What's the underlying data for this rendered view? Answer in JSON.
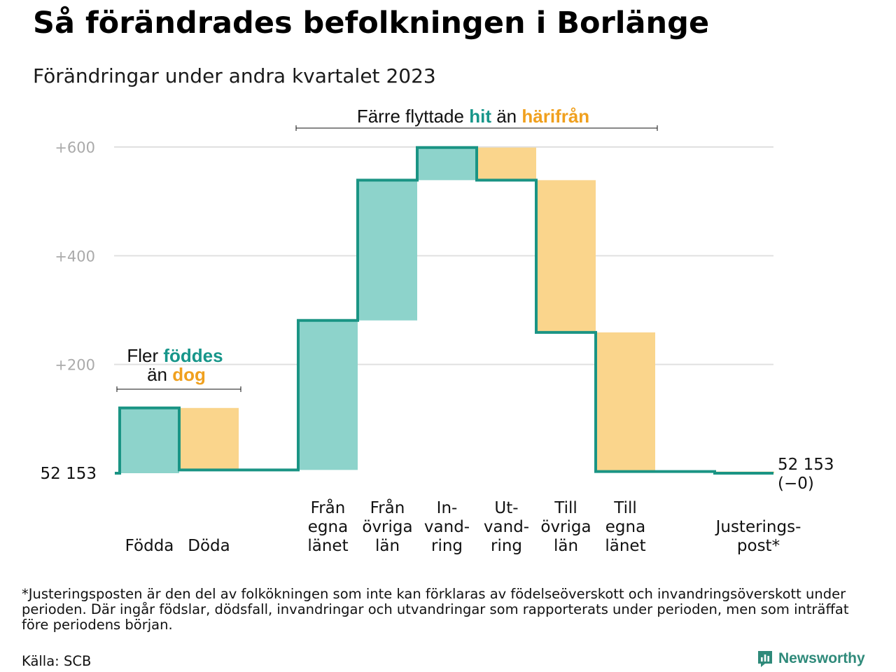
{
  "header": {
    "title": "Så förändrades befolkningen i Borlänge",
    "subtitle": "Förändringar under andra kvartalet 2023"
  },
  "colors": {
    "increase": "#8dd3cb",
    "decrease": "#fad58c",
    "line": "#1a9484",
    "grid": "#e0e0e0",
    "tick": "#aaaaaa",
    "teal_text": "#17968a",
    "orange_text": "#f0a01e"
  },
  "chart_data": {
    "type": "waterfall",
    "start_label": "52  153",
    "end_label": "52 153",
    "end_sublabel": "(−0)",
    "ylim": [
      0,
      600
    ],
    "y_ticks": [
      {
        "value": 200,
        "label": "+200"
      },
      {
        "value": 400,
        "label": "+400"
      },
      {
        "value": 600,
        "label": "+600"
      }
    ],
    "steps": [
      {
        "lines": [
          "Födda"
        ],
        "value": 120,
        "kind": "increase"
      },
      {
        "lines": [
          "Döda"
        ],
        "value": -114,
        "kind": "decrease"
      },
      {
        "lines": [
          "Från",
          "egna",
          "länet"
        ],
        "value": 275,
        "kind": "increase"
      },
      {
        "lines": [
          "Från",
          "övriga",
          "län"
        ],
        "value": 258,
        "kind": "increase"
      },
      {
        "lines": [
          "In-",
          "vand-",
          "ring"
        ],
        "value": 60,
        "kind": "increase"
      },
      {
        "lines": [
          "Ut-",
          "vand-",
          "ring"
        ],
        "value": -60,
        "kind": "decrease"
      },
      {
        "lines": [
          "Till",
          "övriga",
          "län"
        ],
        "value": -280,
        "kind": "decrease"
      },
      {
        "lines": [
          "Till",
          "egna",
          "länet"
        ],
        "value": -256,
        "kind": "decrease"
      },
      {
        "lines": [
          "Justerings-",
          "post*"
        ],
        "value": -3,
        "kind": "decrease"
      }
    ],
    "annotations": {
      "births": {
        "line1_prefix": "Fler ",
        "line1_highlight": "föddes",
        "line2_prefix": "än ",
        "line2_highlight": "dog"
      },
      "moves": {
        "prefix": "Färre flyttade ",
        "highlight1": "hit",
        "middle": " än ",
        "highlight2": "härifrån"
      }
    }
  },
  "footer": {
    "footnote": "*Justeringsposten är den del av folkökningen som inte kan förklaras av födelseöverskott och invandringsöverskott under perioden. Där ingår födslar, dödsfall, invandringar och utvandringar som rapporterats under perioden, men som inträffat före periodens början.",
    "source": "Källa: SCB",
    "brand": "Newsworthy"
  }
}
